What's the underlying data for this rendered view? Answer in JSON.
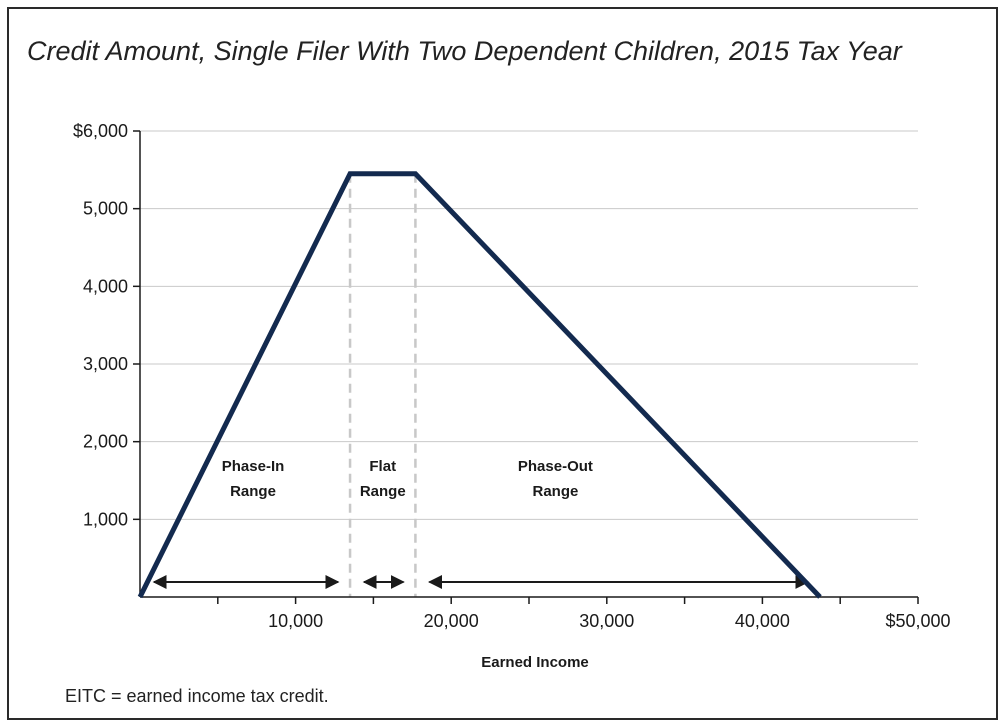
{
  "title": "Credit Amount, Single Filer With Two Dependent Children, 2015 Tax Year",
  "footnote": "EITC = earned income tax credit.",
  "chart_data": {
    "type": "line",
    "title": "Credit Amount, Single Filer With Two Dependent Children, 2015 Tax Year",
    "xlabel": "Earned Income",
    "ylabel": "",
    "xlim": [
      0,
      50000
    ],
    "ylim": [
      0,
      6000
    ],
    "x_ticks": [
      10000,
      20000,
      30000,
      40000,
      50000
    ],
    "x_tick_labels": [
      "10,000",
      "20,000",
      "30,000",
      "40,000",
      "$50,000"
    ],
    "x_minor_ticks": [
      5000,
      15000,
      25000,
      35000,
      45000
    ],
    "y_ticks": [
      1000,
      2000,
      3000,
      4000,
      5000,
      6000
    ],
    "y_tick_labels": [
      "1,000",
      "2,000",
      "3,000",
      "4,000",
      "5,000",
      "$6,000"
    ],
    "grid": "horizontal",
    "line_color": "#132a4f",
    "divider_color": "#c8c8c8",
    "series": [
      {
        "x": [
          0,
          13500,
          17700,
          43700
        ],
        "y": [
          0,
          5450,
          5450,
          0
        ]
      }
    ],
    "dividers_x": [
      13500,
      17700
    ],
    "ranges": [
      {
        "label_line1": "Phase-In",
        "label_line2": "Range",
        "x_start": 0,
        "x_end": 13500
      },
      {
        "label_line1": "Flat",
        "label_line2": "Range",
        "x_start": 13500,
        "x_end": 17700
      },
      {
        "label_line1": "Phase-Out",
        "label_line2": "Range",
        "x_start": 17700,
        "x_end": 43700
      }
    ]
  }
}
